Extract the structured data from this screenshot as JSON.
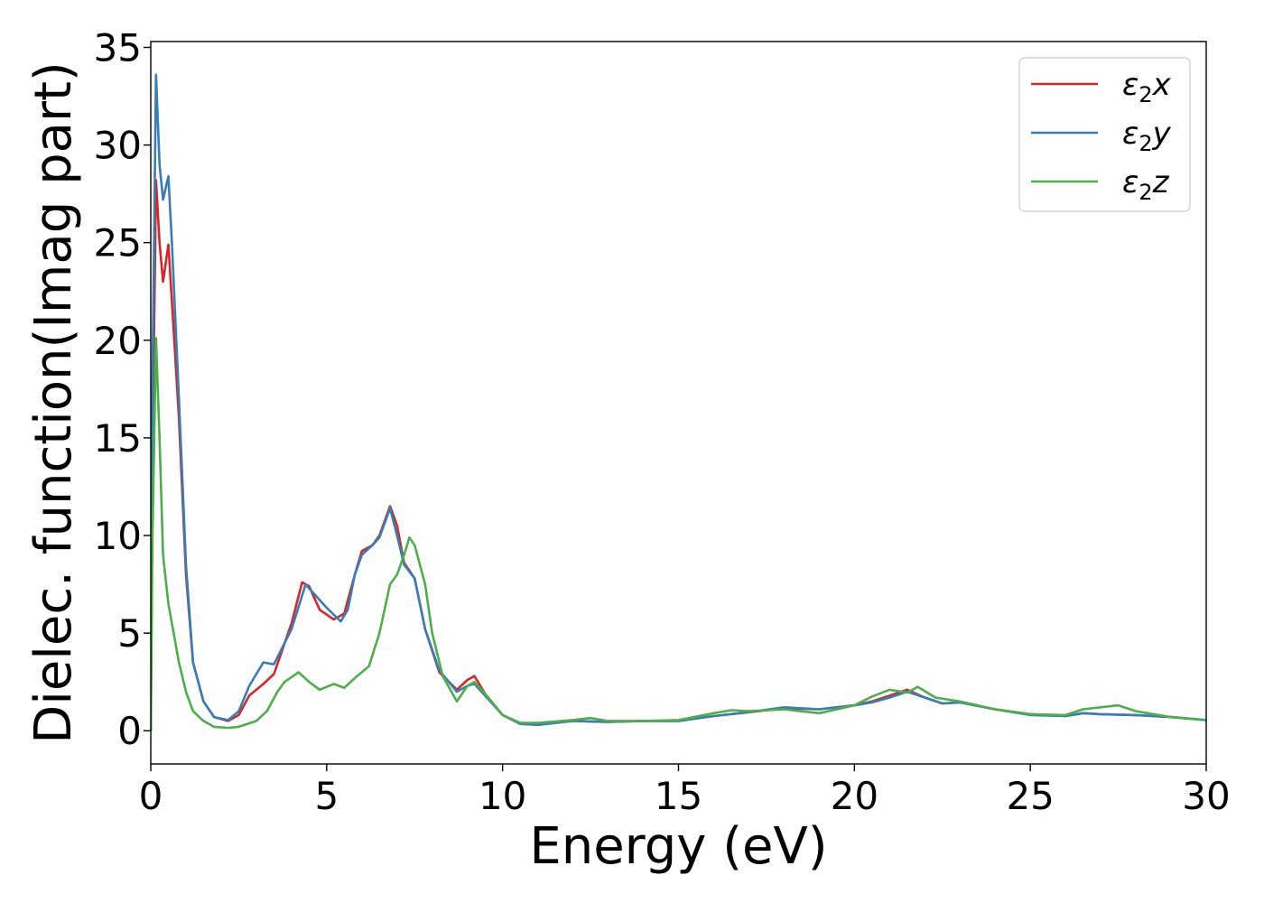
{
  "chart_data": {
    "type": "line",
    "title": "",
    "xlabel": "Energy (eV)",
    "ylabel": "Dielec. function(Imag part)",
    "xlim": [
      0,
      30
    ],
    "ylim": [
      -1.7,
      35.3
    ],
    "xticks": [
      0,
      5,
      10,
      15,
      20,
      25,
      30
    ],
    "yticks": [
      0,
      5,
      10,
      15,
      20,
      25,
      30,
      35
    ],
    "grid": false,
    "legend_position": "top-right",
    "series": [
      {
        "name": "ε₂x",
        "legend_main": "ε",
        "legend_sub": "2",
        "legend_tail": "x",
        "color": "#d62728",
        "points": [
          [
            0,
            0
          ],
          [
            0.05,
            14
          ],
          [
            0.15,
            28.2
          ],
          [
            0.25,
            25
          ],
          [
            0.35,
            23
          ],
          [
            0.5,
            24.9
          ],
          [
            0.6,
            22
          ],
          [
            0.8,
            16
          ],
          [
            1.0,
            8
          ],
          [
            1.2,
            3.5
          ],
          [
            1.5,
            1.5
          ],
          [
            1.8,
            0.7
          ],
          [
            2.2,
            0.5
          ],
          [
            2.5,
            0.8
          ],
          [
            2.8,
            1.8
          ],
          [
            3.2,
            2.4
          ],
          [
            3.5,
            2.9
          ],
          [
            4.0,
            5.5
          ],
          [
            4.3,
            7.6
          ],
          [
            4.5,
            7.4
          ],
          [
            4.8,
            6.2
          ],
          [
            5.2,
            5.7
          ],
          [
            5.5,
            6.0
          ],
          [
            5.8,
            8.0
          ],
          [
            6.0,
            9.2
          ],
          [
            6.3,
            9.5
          ],
          [
            6.5,
            10.0
          ],
          [
            6.8,
            11.5
          ],
          [
            7.0,
            10.5
          ],
          [
            7.2,
            8.6
          ],
          [
            7.5,
            7.8
          ],
          [
            7.8,
            5.2
          ],
          [
            8.2,
            3.0
          ],
          [
            8.7,
            2.1
          ],
          [
            9.0,
            2.6
          ],
          [
            9.2,
            2.8
          ],
          [
            9.5,
            1.9
          ],
          [
            10.0,
            0.8
          ],
          [
            10.5,
            0.4
          ],
          [
            11.0,
            0.35
          ],
          [
            12.0,
            0.5
          ],
          [
            13.0,
            0.45
          ],
          [
            14.0,
            0.5
          ],
          [
            15.0,
            0.5
          ],
          [
            16.0,
            0.75
          ],
          [
            17.0,
            0.95
          ],
          [
            18.0,
            1.15
          ],
          [
            19.0,
            1.1
          ],
          [
            20.0,
            1.3
          ],
          [
            20.5,
            1.5
          ],
          [
            21.0,
            1.8
          ],
          [
            21.5,
            2.1
          ],
          [
            22.0,
            1.7
          ],
          [
            22.5,
            1.4
          ],
          [
            23.0,
            1.45
          ],
          [
            24.0,
            1.1
          ],
          [
            25.0,
            0.85
          ],
          [
            26.0,
            0.75
          ],
          [
            26.5,
            0.9
          ],
          [
            27.0,
            0.85
          ],
          [
            28.0,
            0.8
          ],
          [
            29.0,
            0.7
          ],
          [
            30.0,
            0.55
          ]
        ]
      },
      {
        "name": "ε₂y",
        "legend_main": "ε",
        "legend_sub": "2",
        "legend_tail": "y",
        "color": "#377eb8",
        "points": [
          [
            0,
            0
          ],
          [
            0.05,
            18
          ],
          [
            0.15,
            33.6
          ],
          [
            0.25,
            29
          ],
          [
            0.35,
            27.2
          ],
          [
            0.5,
            28.4
          ],
          [
            0.6,
            25
          ],
          [
            0.8,
            17
          ],
          [
            1.0,
            8.5
          ],
          [
            1.2,
            3.5
          ],
          [
            1.5,
            1.5
          ],
          [
            1.8,
            0.7
          ],
          [
            2.2,
            0.55
          ],
          [
            2.5,
            1.0
          ],
          [
            2.8,
            2.3
          ],
          [
            3.2,
            3.5
          ],
          [
            3.5,
            3.4
          ],
          [
            4.0,
            5.2
          ],
          [
            4.4,
            7.5
          ],
          [
            4.6,
            7.1
          ],
          [
            5.0,
            6.3
          ],
          [
            5.4,
            5.6
          ],
          [
            5.6,
            6.2
          ],
          [
            5.8,
            8.0
          ],
          [
            6.0,
            9.0
          ],
          [
            6.3,
            9.5
          ],
          [
            6.5,
            9.9
          ],
          [
            6.8,
            11.4
          ],
          [
            7.0,
            10.0
          ],
          [
            7.2,
            8.5
          ],
          [
            7.5,
            7.8
          ],
          [
            7.8,
            5.2
          ],
          [
            8.2,
            3.1
          ],
          [
            8.7,
            2.0
          ],
          [
            9.0,
            2.3
          ],
          [
            9.2,
            2.4
          ],
          [
            9.5,
            1.8
          ],
          [
            10.0,
            0.8
          ],
          [
            10.5,
            0.35
          ],
          [
            11.0,
            0.3
          ],
          [
            12.0,
            0.5
          ],
          [
            13.0,
            0.45
          ],
          [
            14.0,
            0.5
          ],
          [
            15.0,
            0.5
          ],
          [
            16.0,
            0.75
          ],
          [
            17.0,
            0.95
          ],
          [
            18.0,
            1.2
          ],
          [
            19.0,
            1.1
          ],
          [
            20.0,
            1.3
          ],
          [
            20.5,
            1.45
          ],
          [
            21.0,
            1.7
          ],
          [
            21.5,
            2.0
          ],
          [
            22.0,
            1.7
          ],
          [
            22.5,
            1.4
          ],
          [
            23.0,
            1.45
          ],
          [
            24.0,
            1.1
          ],
          [
            25.0,
            0.8
          ],
          [
            26.0,
            0.75
          ],
          [
            26.5,
            0.9
          ],
          [
            27.0,
            0.85
          ],
          [
            28.0,
            0.8
          ],
          [
            29.0,
            0.7
          ],
          [
            30.0,
            0.55
          ]
        ]
      },
      {
        "name": "ε₂z",
        "legend_main": "ε",
        "legend_sub": "2",
        "legend_tail": "z",
        "color": "#4daf4a",
        "points": [
          [
            0,
            0
          ],
          [
            0.05,
            10
          ],
          [
            0.15,
            20.1
          ],
          [
            0.25,
            15
          ],
          [
            0.35,
            9
          ],
          [
            0.5,
            6.5
          ],
          [
            0.8,
            3.5
          ],
          [
            1.0,
            2.0
          ],
          [
            1.2,
            1.0
          ],
          [
            1.5,
            0.5
          ],
          [
            1.8,
            0.2
          ],
          [
            2.2,
            0.15
          ],
          [
            2.5,
            0.2
          ],
          [
            3.0,
            0.5
          ],
          [
            3.3,
            1.0
          ],
          [
            3.6,
            2.0
          ],
          [
            3.8,
            2.5
          ],
          [
            4.2,
            3.0
          ],
          [
            4.5,
            2.5
          ],
          [
            4.8,
            2.1
          ],
          [
            5.2,
            2.4
          ],
          [
            5.5,
            2.2
          ],
          [
            5.8,
            2.7
          ],
          [
            6.2,
            3.3
          ],
          [
            6.5,
            5.0
          ],
          [
            6.8,
            7.5
          ],
          [
            7.0,
            8.0
          ],
          [
            7.2,
            9.0
          ],
          [
            7.35,
            9.9
          ],
          [
            7.5,
            9.5
          ],
          [
            7.8,
            7.5
          ],
          [
            8.0,
            5.0
          ],
          [
            8.3,
            2.8
          ],
          [
            8.7,
            1.5
          ],
          [
            9.0,
            2.3
          ],
          [
            9.2,
            2.5
          ],
          [
            9.5,
            1.9
          ],
          [
            10.0,
            0.8
          ],
          [
            10.5,
            0.4
          ],
          [
            11.0,
            0.4
          ],
          [
            12.0,
            0.55
          ],
          [
            12.5,
            0.65
          ],
          [
            13.0,
            0.5
          ],
          [
            14.0,
            0.5
          ],
          [
            15.0,
            0.55
          ],
          [
            16.0,
            0.9
          ],
          [
            16.5,
            1.05
          ],
          [
            17.0,
            1.0
          ],
          [
            18.0,
            1.1
          ],
          [
            19.0,
            0.9
          ],
          [
            20.0,
            1.3
          ],
          [
            20.5,
            1.75
          ],
          [
            21.0,
            2.1
          ],
          [
            21.5,
            1.95
          ],
          [
            21.8,
            2.25
          ],
          [
            22.3,
            1.7
          ],
          [
            23.0,
            1.5
          ],
          [
            24.0,
            1.1
          ],
          [
            25.0,
            0.85
          ],
          [
            26.0,
            0.8
          ],
          [
            26.5,
            1.1
          ],
          [
            27.5,
            1.3
          ],
          [
            28.0,
            1.0
          ],
          [
            29.0,
            0.7
          ],
          [
            30.0,
            0.55
          ]
        ]
      }
    ]
  }
}
